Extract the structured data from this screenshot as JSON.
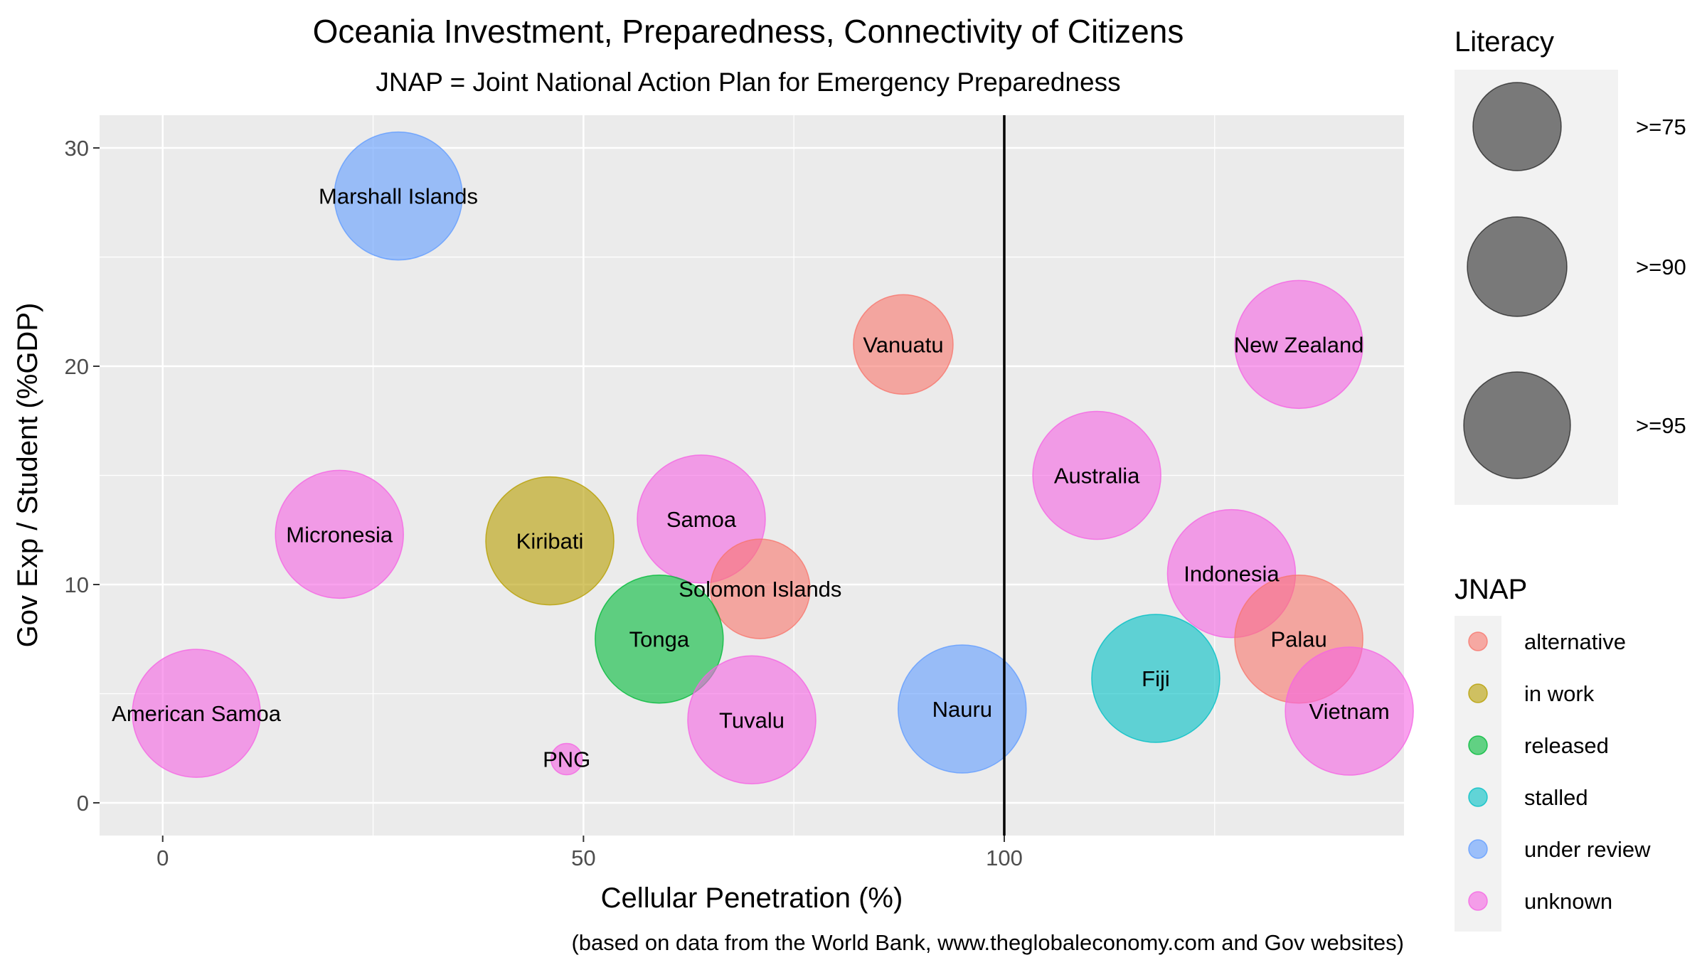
{
  "chart_data": {
    "type": "scatter",
    "title": "Oceania Investment, Preparedness, Connectivity of Citizens",
    "subtitle": "JNAP = Joint National Action Plan for Emergency Preparedness",
    "xlabel": "Cellular Penetration (%)",
    "ylabel": "Gov Exp / Student (%GDP)",
    "caption": "(based on data from the World Bank, www.theglobaleconomy.com and Gov websites)",
    "xlim": [
      -7.5,
      147.5
    ],
    "ylim": [
      -1.5,
      31.5
    ],
    "x_ticks": [
      0,
      50,
      100
    ],
    "y_ticks": [
      0,
      10,
      20,
      30
    ],
    "grid": true,
    "reference_line": {
      "x": 100
    },
    "size_legend": {
      "title": "Literacy",
      "entries": [
        {
          "label": ">=75",
          "level": 75
        },
        {
          "label": ">=90",
          "level": 90
        },
        {
          "label": ">=95",
          "level": 95
        }
      ]
    },
    "color_legend": {
      "title": "JNAP",
      "entries": [
        {
          "label": "alternative",
          "color": "#F8766D"
        },
        {
          "label": "in work",
          "color": "#B79F00"
        },
        {
          "label": "released",
          "color": "#00BA38"
        },
        {
          "label": "stalled",
          "color": "#00BFC4"
        },
        {
          "label": "under review",
          "color": "#619CFF"
        },
        {
          "label": "unknown",
          "color": "#F564E3"
        }
      ]
    },
    "points": [
      {
        "label": "Marshall Islands",
        "x": 28,
        "y": 27.8,
        "jnap": "under review",
        "literacy": 98
      },
      {
        "label": "Vanuatu",
        "x": 88,
        "y": 21,
        "jnap": "alternative",
        "literacy": 85
      },
      {
        "label": "New Zealand",
        "x": 135,
        "y": 21,
        "jnap": "unknown",
        "literacy": 99
      },
      {
        "label": "Australia",
        "x": 111,
        "y": 15,
        "jnap": "unknown",
        "literacy": 99
      },
      {
        "label": "Samoa",
        "x": 64,
        "y": 13,
        "jnap": "unknown",
        "literacy": 99
      },
      {
        "label": "Micronesia",
        "x": 21,
        "y": 12.3,
        "jnap": "unknown",
        "literacy": 99
      },
      {
        "label": "Kiribati",
        "x": 46,
        "y": 12,
        "jnap": "in work",
        "literacy": 98
      },
      {
        "label": "Indonesia",
        "x": 127,
        "y": 10.5,
        "jnap": "unknown",
        "literacy": 96
      },
      {
        "label": "Solomon Islands",
        "x": 71,
        "y": 9.8,
        "jnap": "alternative",
        "literacy": 84
      },
      {
        "label": "Palau",
        "x": 135,
        "y": 7.5,
        "jnap": "alternative",
        "literacy": 99
      },
      {
        "label": "Tonga",
        "x": 59,
        "y": 7.5,
        "jnap": "released",
        "literacy": 99
      },
      {
        "label": "Fiji",
        "x": 118,
        "y": 5.7,
        "jnap": "stalled",
        "literacy": 99
      },
      {
        "label": "Nauru",
        "x": 95,
        "y": 4.3,
        "jnap": "under review",
        "literacy": 97
      },
      {
        "label": "Vietnam",
        "x": 141,
        "y": 4.2,
        "jnap": "unknown",
        "literacy": 98
      },
      {
        "label": "American Samoa",
        "x": 4,
        "y": 4.1,
        "jnap": "unknown",
        "literacy": 98
      },
      {
        "label": "Tuvalu",
        "x": 70,
        "y": 3.8,
        "jnap": "unknown",
        "literacy": 99
      },
      {
        "label": "PNG",
        "x": 48,
        "y": 2,
        "jnap": "unknown",
        "literacy": 63
      }
    ]
  }
}
